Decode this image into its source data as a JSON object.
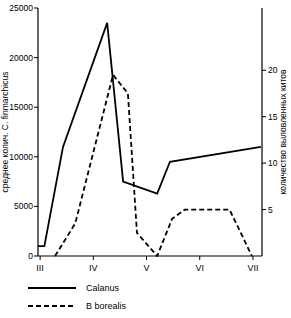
{
  "chart_data": {
    "type": "line",
    "y_label": "среднее колич. C. finmarchicus",
    "y2_label": "количество выловленных китов",
    "xlim": [
      2.96,
      7.17
    ],
    "xticks": [
      {
        "value": 3,
        "label": "III"
      },
      {
        "value": 4,
        "label": "IV"
      },
      {
        "value": 5,
        "label": "V"
      },
      {
        "value": 6,
        "label": "VI"
      },
      {
        "value": 7,
        "label": "VII"
      }
    ],
    "ylim": [
      0,
      25000
    ],
    "yticks": [
      0,
      5000,
      10000,
      15000,
      20000,
      25000
    ],
    "y2lim": [
      0,
      26.7
    ],
    "y2ticks": [
      5,
      10,
      15,
      20
    ],
    "grid": false,
    "legend": "bottom",
    "series": [
      {
        "name": "Calanus",
        "color": "#000000",
        "line_style": "solid",
        "x": [
          2.96,
          3.08,
          3.43,
          4.26,
          4.56,
          5.2,
          5.44,
          7.15
        ],
        "values": [
          1000,
          1000,
          11000,
          23500,
          7500,
          6300,
          9500,
          11000
        ]
      },
      {
        "name": "B borealis",
        "color": "#000000",
        "line_style": "dashed",
        "axis": "y2",
        "x": [
          3.28,
          3.66,
          4.37,
          4.65,
          4.82,
          5.2,
          5.48,
          5.72,
          6.56,
          6.98
        ],
        "values": [
          0,
          3.5,
          19.5,
          17.5,
          2.5,
          0,
          4,
          5,
          5,
          0
        ]
      }
    ]
  }
}
